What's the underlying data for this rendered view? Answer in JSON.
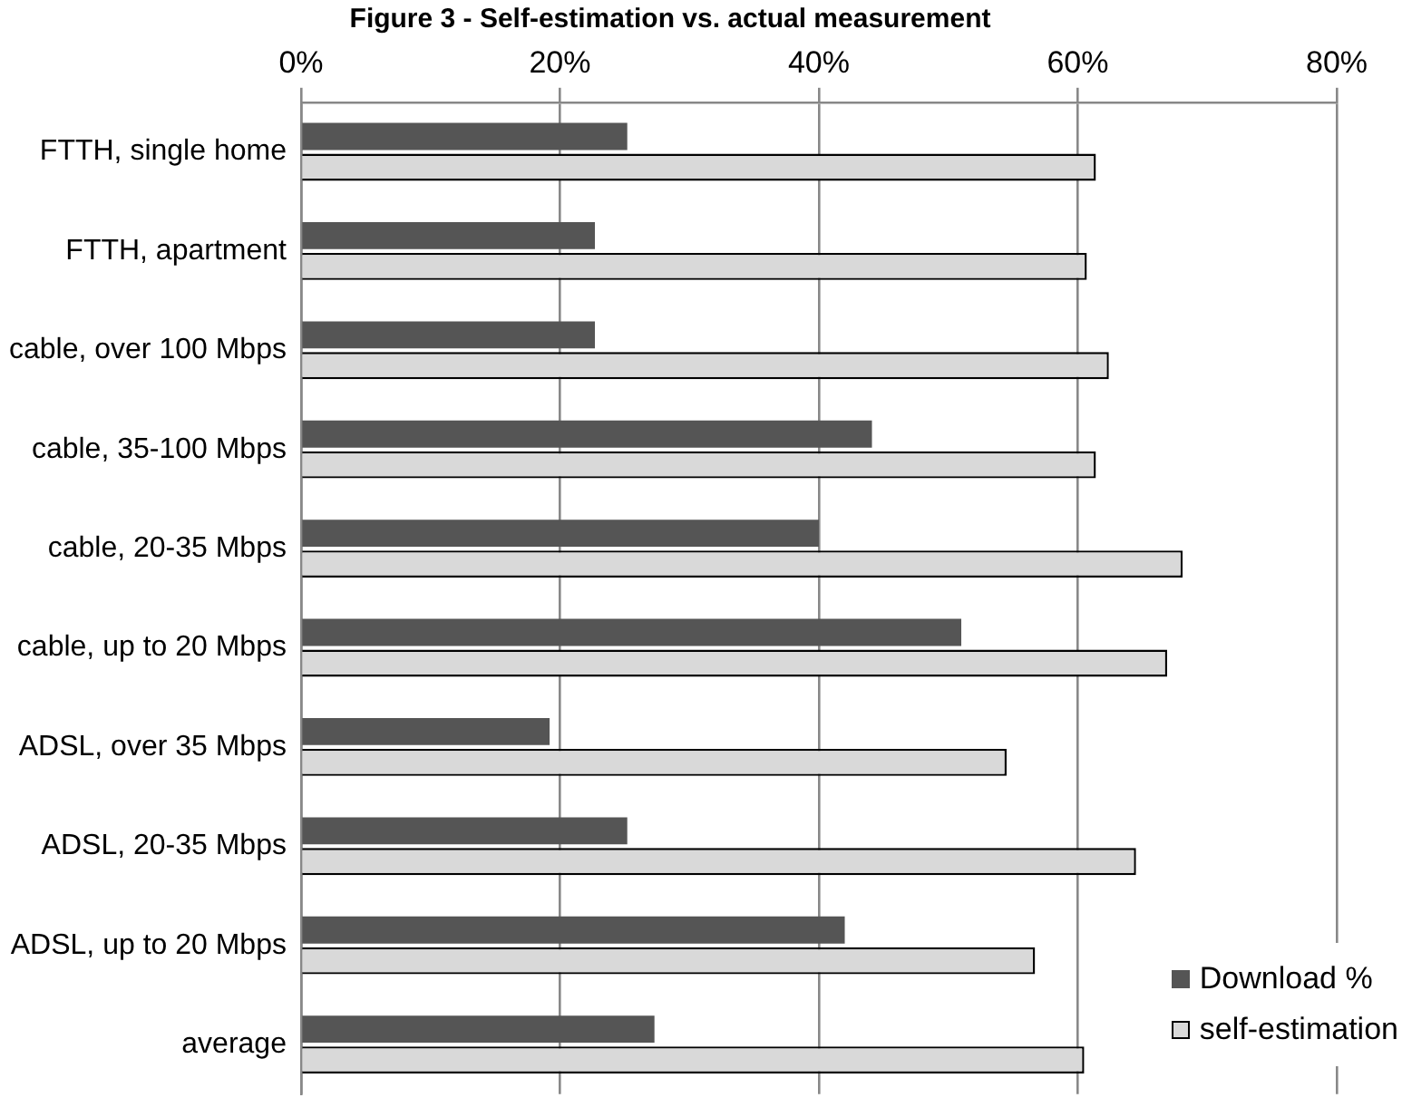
{
  "chart_data": {
    "type": "bar",
    "orientation": "horizontal",
    "title": "Figure 3 - Self-estimation vs. actual measurement",
    "categories": [
      "FTTH, single home",
      "FTTH, apartment",
      "cable, over 100 Mbps",
      "cable, 35-100 Mbps",
      "cable, 20-35 Mbps",
      "cable, up to 20 Mbps",
      "ADSL, over 35 Mbps",
      "ADSL, 20-35 Mbps",
      "ADSL, up to 20 Mbps",
      "average"
    ],
    "series": [
      {
        "name": "Download %",
        "color": "#555555",
        "values": [
          25.2,
          22.7,
          22.7,
          44.1,
          40.0,
          51.0,
          19.2,
          25.2,
          42.0,
          27.3
        ]
      },
      {
        "name": "self-estimation",
        "color": "#d9d9d9",
        "values": [
          61.4,
          60.7,
          62.4,
          61.4,
          68.1,
          66.9,
          54.5,
          64.5,
          56.7,
          60.5
        ]
      }
    ],
    "xlim": [
      0,
      80
    ],
    "xticks": [
      {
        "value": 0,
        "label": "0%"
      },
      {
        "value": 20,
        "label": "20%"
      },
      {
        "value": 40,
        "label": "40%"
      },
      {
        "value": 60,
        "label": "60%"
      },
      {
        "value": 80,
        "label": "80%"
      }
    ],
    "grid": "x",
    "legend": "bottom right"
  }
}
